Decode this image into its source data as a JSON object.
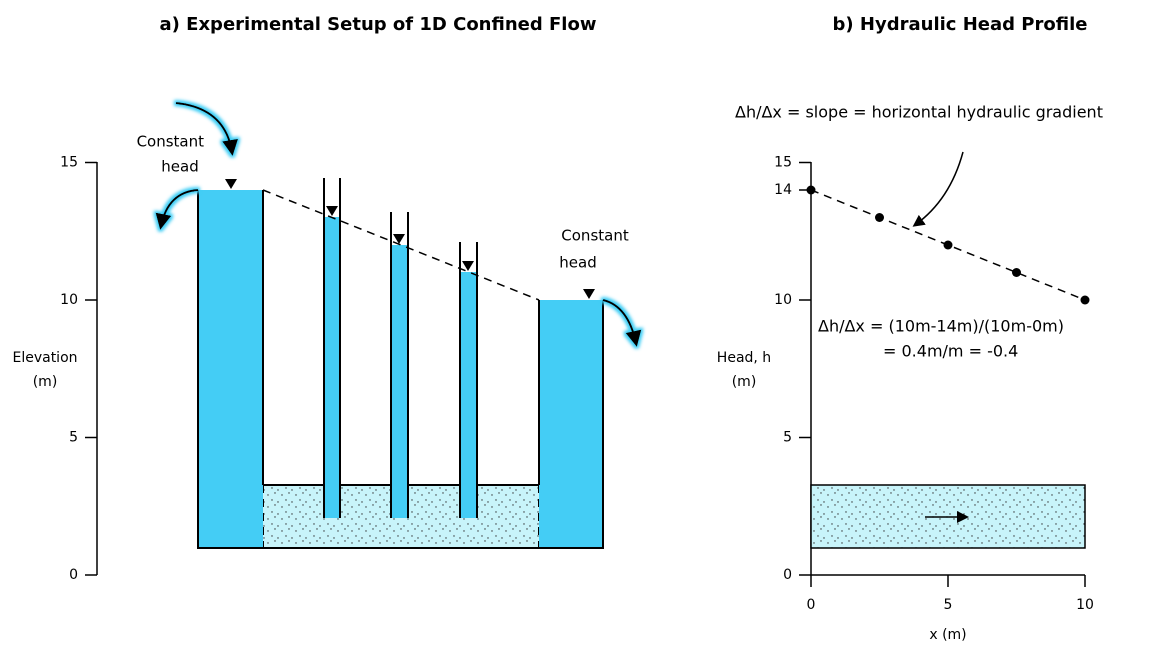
{
  "panel_a": {
    "title": "a) Experimental Setup of 1D Confined Flow",
    "y_label": [
      "Elevation",
      "(m)"
    ],
    "yticks": [
      0,
      5,
      10,
      15
    ],
    "left_label": [
      "Constant",
      "head"
    ],
    "right_label": [
      "Constant",
      "head"
    ]
  },
  "panel_b": {
    "title": "b) Hydraulic Head Profile",
    "annotation": "Δh/Δx = slope = horizontal hydraulic gradient",
    "equation": [
      "Δh/Δx = (10m-14m)/(10m-0m)",
      "= 0.4m/m = -0.4"
    ],
    "y_label": [
      "Head, h",
      "(m)"
    ],
    "x_label": "x (m)",
    "yticks": [
      0,
      5,
      10,
      14,
      15
    ],
    "xticks": [
      0,
      5,
      10
    ],
    "points": {
      "x": [
        0,
        2.5,
        5,
        7.5,
        10
      ],
      "h": [
        14,
        13,
        12,
        11,
        10
      ]
    }
  }
}
